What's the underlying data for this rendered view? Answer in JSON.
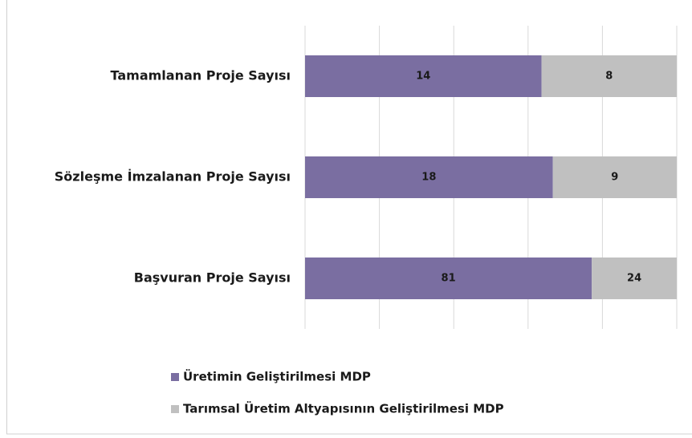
{
  "chart_data": {
    "type": "bar",
    "orientation": "horizontal",
    "stacked": "percent",
    "categories": [
      "Tamamlanan Proje Sayısı",
      "Sözleşme İmzalanan Proje Sayısı",
      "Başvuran Proje Sayısı"
    ],
    "series": [
      {
        "name": "Üretimin Geliştirilmesi MDP",
        "color": "#7a6ea1",
        "values": [
          14,
          18,
          81
        ]
      },
      {
        "name": "Tarımsal Üretim Altyapısının Geliştirilmesi MDP",
        "color": "#c0c0c0",
        "values": [
          8,
          9,
          24
        ]
      }
    ],
    "xlim": [
      0,
      100
    ],
    "xticks": [
      0,
      20,
      40,
      60,
      80,
      100
    ],
    "grid": true,
    "legend": "bottom"
  }
}
